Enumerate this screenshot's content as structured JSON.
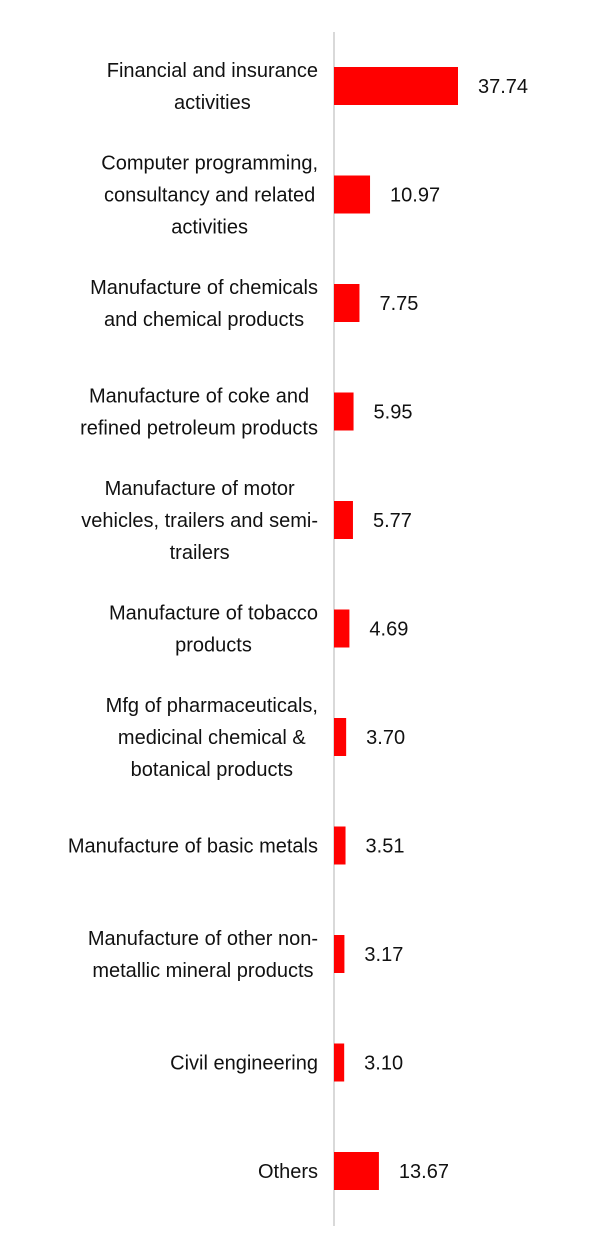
{
  "chart_data": {
    "type": "bar",
    "orientation": "horizontal",
    "title": "",
    "xlabel": "",
    "ylabel": "",
    "categories": [
      [
        "Financial and insurance",
        "activities"
      ],
      [
        "Computer programming,",
        "consultancy and related",
        "activities"
      ],
      [
        "Manufacture of chemicals",
        "and chemical products"
      ],
      [
        "Manufacture of coke and",
        "refined petroleum products"
      ],
      [
        "Manufacture of motor",
        "vehicles, trailers and semi-",
        "trailers"
      ],
      [
        "Manufacture of tobacco",
        "products"
      ],
      [
        "Mfg of pharmaceuticals,",
        "medicinal chemical &",
        "botanical products"
      ],
      [
        "Manufacture of basic metals"
      ],
      [
        "Manufacture of other non-",
        "metallic mineral products"
      ],
      [
        "Civil engineering"
      ],
      [
        "Others"
      ]
    ],
    "values": [
      37.74,
      10.97,
      7.75,
      5.95,
      5.77,
      4.69,
      3.7,
      3.51,
      3.17,
      3.1,
      13.67
    ],
    "value_labels": [
      "37.74",
      "10.97",
      "7.75",
      "5.95",
      "5.77",
      "4.69",
      "3.70",
      "3.51",
      "3.17",
      "3.10",
      "13.67"
    ],
    "xlim": [
      0,
      40
    ],
    "grid": false,
    "legend": "none",
    "colors": {
      "bar": "#ff0000",
      "axis": "#d9d9d9",
      "text": "#111111"
    }
  }
}
